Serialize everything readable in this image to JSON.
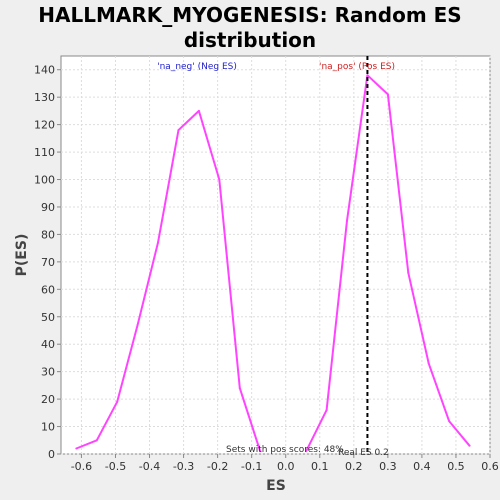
{
  "chart_data": {
    "type": "line",
    "title_line1": "HALLMARK_MYOGENESIS: Random ES",
    "title_line2": "distribution",
    "xlabel": "ES",
    "ylabel": "P(ES)",
    "xlim": [
      -0.66,
      0.6
    ],
    "ylim": [
      0,
      145
    ],
    "xticks": [
      -0.6,
      -0.5,
      -0.4,
      -0.3,
      -0.2,
      -0.1,
      0.0,
      0.1,
      0.2,
      0.3,
      0.4,
      0.5,
      0.6
    ],
    "xtick_labels": [
      "-0.6",
      "-0.5",
      "-0.4",
      "-0.3",
      "-0.2",
      "-0.1",
      "0.0",
      "0.1",
      "0.2",
      "0.3",
      "0.4",
      "0.5",
      "0.6"
    ],
    "yticks": [
      0,
      10,
      20,
      30,
      40,
      50,
      60,
      70,
      80,
      90,
      100,
      110,
      120,
      130,
      140
    ],
    "ytick_labels": [
      "0",
      "10",
      "20",
      "30",
      "40",
      "50",
      "60",
      "70",
      "80",
      "90",
      "100",
      "110",
      "120",
      "130",
      "140"
    ],
    "grid": true,
    "series_color": "#ff44ff",
    "series": [
      {
        "x": [
          -0.615,
          -0.555,
          -0.495,
          -0.435,
          -0.375,
          -0.315,
          -0.255,
          -0.195,
          -0.135,
          -0.075
        ],
        "y": [
          2,
          5,
          19,
          47,
          77,
          118,
          125,
          100,
          24,
          1
        ]
      },
      {
        "x": [
          0.06,
          0.12,
          0.18,
          0.24,
          0.3,
          0.36,
          0.42,
          0.48,
          0.54
        ],
        "y": [
          1,
          16,
          85,
          138,
          131,
          66,
          33,
          12,
          3
        ]
      }
    ],
    "real_es": 0.24,
    "real_es_line_color": "#000000",
    "annotations": {
      "neg_label": "'na_neg' (Neg ES)",
      "neg_color": "#2222cc",
      "pos_label": "'na_pos' (Pos ES)",
      "pos_color": "#cc2222",
      "pos_scores_note": "Sets with pos scores: 48%",
      "real_es_note": "Real ES 0.2"
    }
  }
}
